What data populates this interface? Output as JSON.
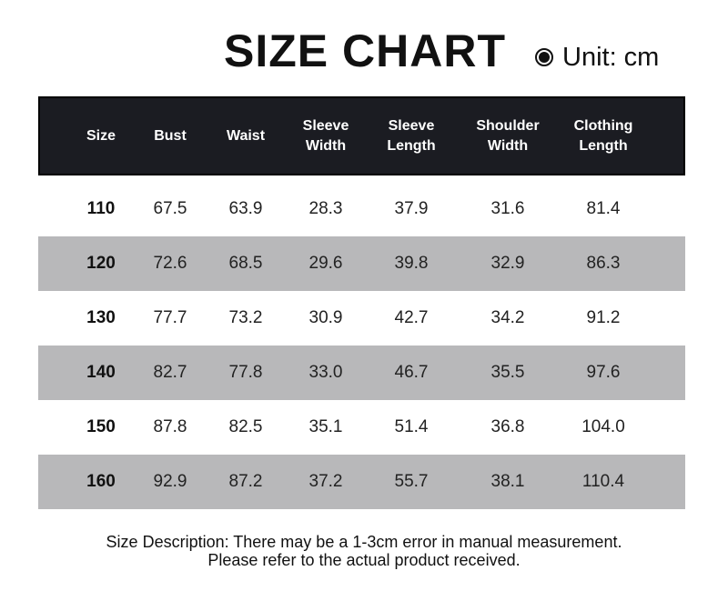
{
  "title": "SIZE CHART",
  "unit": {
    "icon": "radio-selected-icon",
    "label": "Unit: cm"
  },
  "table": {
    "headers": [
      [
        "Size"
      ],
      [
        "Bust"
      ],
      [
        "Waist"
      ],
      [
        "Sleeve",
        "Width"
      ],
      [
        "Sleeve",
        "Length"
      ],
      [
        "Shoulder",
        "Width"
      ],
      [
        "Clothing",
        "Length"
      ]
    ],
    "rows": [
      [
        "110",
        "67.5",
        "63.9",
        "28.3",
        "37.9",
        "31.6",
        "81.4"
      ],
      [
        "120",
        "72.6",
        "68.5",
        "29.6",
        "39.8",
        "32.9",
        "86.3"
      ],
      [
        "130",
        "77.7",
        "73.2",
        "30.9",
        "42.7",
        "34.2",
        "91.2"
      ],
      [
        "140",
        "82.7",
        "77.8",
        "33.0",
        "46.7",
        "35.5",
        "97.6"
      ],
      [
        "150",
        "87.8",
        "82.5",
        "35.1",
        "51.4",
        "36.8",
        "104.0"
      ],
      [
        "160",
        "92.9",
        "87.2",
        "37.2",
        "55.7",
        "38.1",
        "110.4"
      ]
    ]
  },
  "colors": {
    "header_bg": "#1b1c22",
    "stripe": "#b8b8ba"
  },
  "footer": {
    "line1": "Size Description: There may be a 1-3cm error in manual measurement.",
    "line2": "Please refer to the actual product received."
  }
}
